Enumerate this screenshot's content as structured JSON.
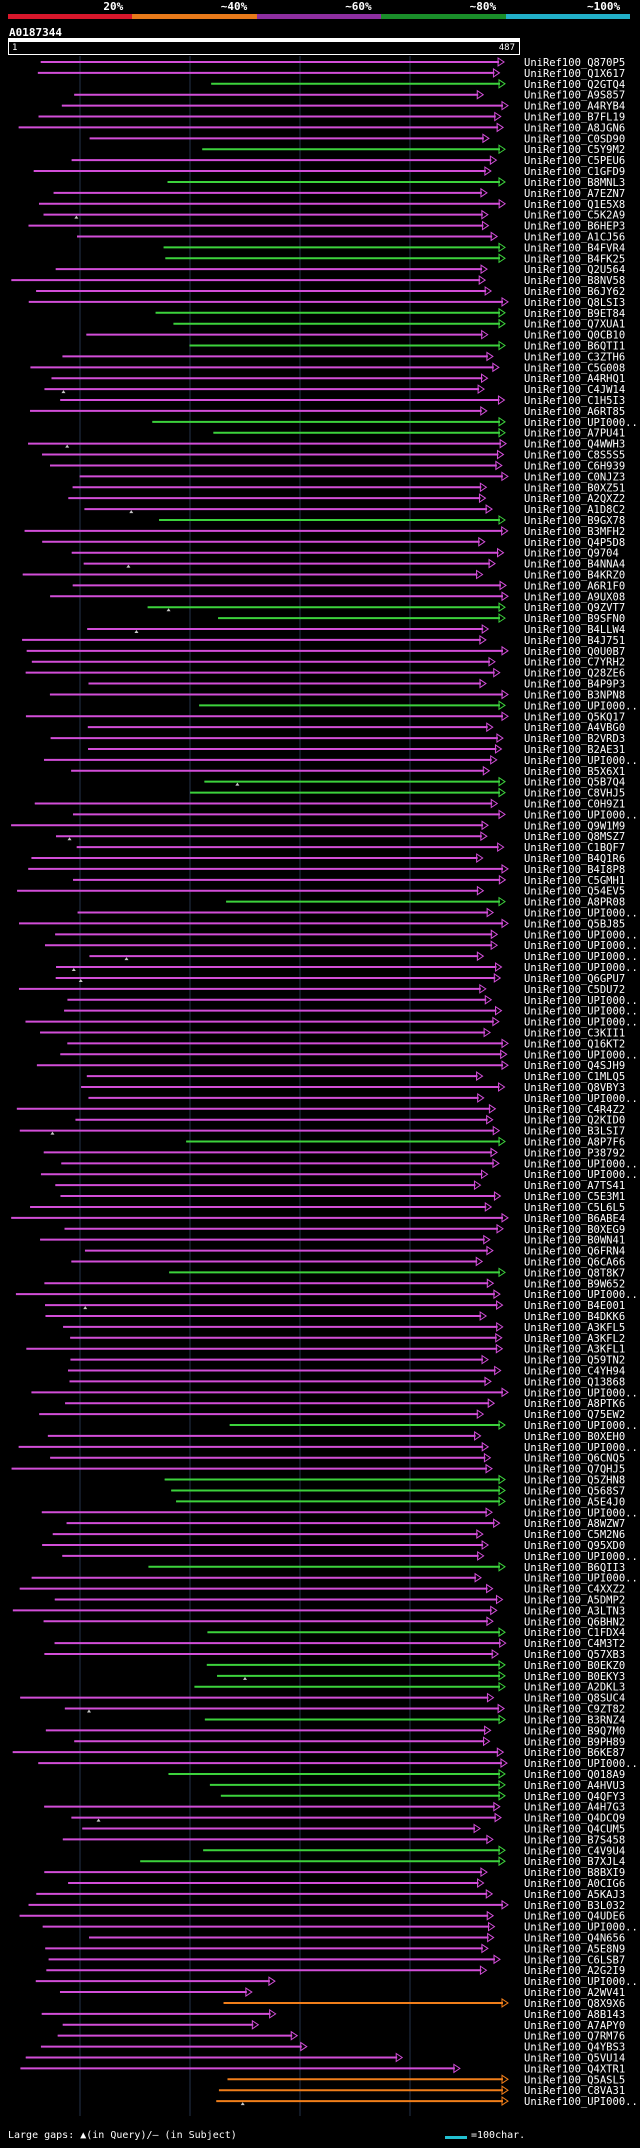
{
  "legend": {
    "bands": [
      {
        "label": "20%",
        "color": "#d8172b"
      },
      {
        "label": "~40%",
        "color": "#e87a1a"
      },
      {
        "label": "~60%",
        "color": "#8e2fa0"
      },
      {
        "label": "~80%",
        "color": "#1a8e2a"
      },
      {
        "label": "~100%",
        "color": "#22b0c8"
      }
    ]
  },
  "query": {
    "name": "A0187344",
    "start": "1",
    "end": "487"
  },
  "colors": {
    "magenta": "#d24ed8",
    "green": "#3cd23c",
    "orange": "#f07e1a",
    "grid": "#24324a",
    "gap": "#c8c8c8"
  },
  "hits": [
    {
      "name": "UniRef100_Q870P5",
      "color": "magenta"
    },
    {
      "name": "UniRef100_Q1X617",
      "color": "magenta"
    },
    {
      "name": "UniRef100_Q2GTQ4",
      "color": "green"
    },
    {
      "name": "UniRef100_A9S857",
      "color": "magenta"
    },
    {
      "name": "UniRef100_A4RYB4",
      "color": "magenta"
    },
    {
      "name": "UniRef100_B7FL19",
      "color": "magenta"
    },
    {
      "name": "UniRef100_A8JGN6",
      "color": "magenta"
    },
    {
      "name": "UniRef100_C0SD90",
      "color": "magenta"
    },
    {
      "name": "UniRef100_C5Y9M2",
      "color": "green"
    },
    {
      "name": "UniRef100_C5PEU6",
      "color": "magenta"
    },
    {
      "name": "UniRef100_C1GFD9",
      "color": "magenta"
    },
    {
      "name": "UniRef100_B8MNL3",
      "color": "green"
    },
    {
      "name": "UniRef100_A7EZN7",
      "color": "magenta"
    },
    {
      "name": "UniRef100_Q1E5X8",
      "color": "magenta"
    },
    {
      "name": "UniRef100_C5K2A9",
      "color": "magenta"
    },
    {
      "name": "UniRef100_B6HEP3",
      "color": "magenta"
    },
    {
      "name": "UniRef100_A1CJ56",
      "color": "magenta"
    },
    {
      "name": "UniRef100_B4FVR4",
      "color": "green"
    },
    {
      "name": "UniRef100_B4FK25",
      "color": "green"
    },
    {
      "name": "UniRef100_Q2U564",
      "color": "magenta"
    },
    {
      "name": "UniRef100_B8NV58",
      "color": "magenta"
    },
    {
      "name": "UniRef100_B6JY62",
      "color": "magenta"
    },
    {
      "name": "UniRef100_Q8LSI3",
      "color": "magenta"
    },
    {
      "name": "UniRef100_B9ET84",
      "color": "green"
    },
    {
      "name": "UniRef100_Q7XUA1",
      "color": "green"
    },
    {
      "name": "UniRef100_Q0CB10",
      "color": "magenta"
    },
    {
      "name": "UniRef100_B6QTI1",
      "color": "green"
    },
    {
      "name": "UniRef100_C3ZTH6",
      "color": "magenta"
    },
    {
      "name": "UniRef100_C5G008",
      "color": "magenta"
    },
    {
      "name": "UniRef100_A4RHQ1",
      "color": "magenta"
    },
    {
      "name": "UniRef100_C4JW14",
      "color": "magenta"
    },
    {
      "name": "UniRef100_C1H5I3",
      "color": "magenta"
    },
    {
      "name": "UniRef100_A6RT85",
      "color": "magenta"
    },
    {
      "name": "UniRef100_UPI000...",
      "color": "green"
    },
    {
      "name": "UniRef100_A7PU41",
      "color": "green"
    },
    {
      "name": "UniRef100_Q4WWH3",
      "color": "magenta"
    },
    {
      "name": "UniRef100_C8S5S5",
      "color": "magenta"
    },
    {
      "name": "UniRef100_C6H939",
      "color": "magenta"
    },
    {
      "name": "UniRef100_C0NJZ3",
      "color": "magenta"
    },
    {
      "name": "UniRef100_B0XZ51",
      "color": "magenta"
    },
    {
      "name": "UniRef100_A2QXZ2",
      "color": "magenta"
    },
    {
      "name": "UniRef100_A1D8C2",
      "color": "magenta"
    },
    {
      "name": "UniRef100_B9GX78",
      "color": "green"
    },
    {
      "name": "UniRef100_B3MFH2",
      "color": "magenta"
    },
    {
      "name": "UniRef100_Q4P5D8",
      "color": "magenta"
    },
    {
      "name": "UniRef100_Q9704",
      "color": "magenta"
    },
    {
      "name": "UniRef100_B4NNA4",
      "color": "magenta"
    },
    {
      "name": "UniRef100_B4KRZ0",
      "color": "magenta"
    },
    {
      "name": "UniRef100_A6R1F0",
      "color": "magenta"
    },
    {
      "name": "UniRef100_A9UX08",
      "color": "magenta"
    },
    {
      "name": "UniRef100_Q9ZVT7",
      "color": "green"
    },
    {
      "name": "UniRef100_B9SFN0",
      "color": "green"
    },
    {
      "name": "UniRef100_B4LLW4",
      "color": "magenta"
    },
    {
      "name": "UniRef100_B4J751",
      "color": "magenta"
    },
    {
      "name": "UniRef100_Q0U0B7",
      "color": "magenta"
    },
    {
      "name": "UniRef100_C7YRH2",
      "color": "magenta"
    },
    {
      "name": "UniRef100_Q28ZE6",
      "color": "magenta"
    },
    {
      "name": "UniRef100_B4P9P3",
      "color": "magenta"
    },
    {
      "name": "UniRef100_B3NPN8",
      "color": "magenta"
    },
    {
      "name": "UniRef100_UPI000...",
      "color": "green"
    },
    {
      "name": "UniRef100_Q5KQ17",
      "color": "magenta"
    },
    {
      "name": "UniRef100_A4VBG0",
      "color": "magenta"
    },
    {
      "name": "UniRef100_B2VRD3",
      "color": "magenta"
    },
    {
      "name": "UniRef100_B2AE31",
      "color": "magenta"
    },
    {
      "name": "UniRef100_UPI000...",
      "color": "magenta"
    },
    {
      "name": "UniRef100_B5X6X1",
      "color": "magenta"
    },
    {
      "name": "UniRef100_Q5B7Q4",
      "color": "green"
    },
    {
      "name": "UniRef100_C8VHJ5",
      "color": "green"
    },
    {
      "name": "UniRef100_C0H9Z1",
      "color": "magenta"
    },
    {
      "name": "UniRef100_UPI000...",
      "color": "magenta"
    },
    {
      "name": "UniRef100_Q9W1M9",
      "color": "magenta"
    },
    {
      "name": "UniRef100_Q8MSZ7",
      "color": "magenta"
    },
    {
      "name": "UniRef100_C1BQF7",
      "color": "magenta"
    },
    {
      "name": "UniRef100_B4Q1R6",
      "color": "magenta"
    },
    {
      "name": "UniRef100_B4I8P8",
      "color": "magenta"
    },
    {
      "name": "UniRef100_C5GMH1",
      "color": "magenta"
    },
    {
      "name": "UniRef100_Q54EV5",
      "color": "magenta"
    },
    {
      "name": "UniRef100_A8PR08",
      "color": "green"
    },
    {
      "name": "UniRef100_UPI000...",
      "color": "magenta"
    },
    {
      "name": "UniRef100_Q5BJ85",
      "color": "magenta"
    },
    {
      "name": "UniRef100_UPI000...",
      "color": "magenta"
    },
    {
      "name": "UniRef100_UPI000...",
      "color": "magenta"
    },
    {
      "name": "UniRef100_UPI000...",
      "color": "magenta"
    },
    {
      "name": "UniRef100_UPI000...",
      "color": "magenta"
    },
    {
      "name": "UniRef100_Q6GPU7",
      "color": "magenta"
    },
    {
      "name": "UniRef100_C5DU72",
      "color": "magenta"
    },
    {
      "name": "UniRef100_UPI000...",
      "color": "magenta"
    },
    {
      "name": "UniRef100_UPI000...",
      "color": "magenta"
    },
    {
      "name": "UniRef100_UPI000...",
      "color": "magenta"
    },
    {
      "name": "UniRef100_C3KII1",
      "color": "magenta"
    },
    {
      "name": "UniRef100_Q16KT2",
      "color": "magenta"
    },
    {
      "name": "UniRef100_UPI000...",
      "color": "magenta"
    },
    {
      "name": "UniRef100_Q4SJH9",
      "color": "magenta"
    },
    {
      "name": "UniRef100_C1MLQ5",
      "color": "magenta"
    },
    {
      "name": "UniRef100_Q8VBY3",
      "color": "magenta"
    },
    {
      "name": "UniRef100_UPI000...",
      "color": "magenta"
    },
    {
      "name": "UniRef100_C4R4Z2",
      "color": "magenta"
    },
    {
      "name": "UniRef100_Q2KID0",
      "color": "magenta"
    },
    {
      "name": "UniRef100_B3LSI7",
      "color": "magenta"
    },
    {
      "name": "UniRef100_A8P7F6",
      "color": "green"
    },
    {
      "name": "UniRef100_P38792",
      "color": "magenta"
    },
    {
      "name": "UniRef100_UPI000...",
      "color": "magenta"
    },
    {
      "name": "UniRef100_UPI000...",
      "color": "magenta"
    },
    {
      "name": "UniRef100_A7TS41",
      "color": "magenta"
    },
    {
      "name": "UniRef100_C5E3M1",
      "color": "magenta"
    },
    {
      "name": "UniRef100_C5L6L5",
      "color": "magenta"
    },
    {
      "name": "UniRef100_B6ABE4",
      "color": "magenta"
    },
    {
      "name": "UniRef100_B0XEG9",
      "color": "magenta"
    },
    {
      "name": "UniRef100_B0WN41",
      "color": "magenta"
    },
    {
      "name": "UniRef100_Q6FRN4",
      "color": "magenta"
    },
    {
      "name": "UniRef100_Q6CA66",
      "color": "magenta"
    },
    {
      "name": "UniRef100_Q8T8K7",
      "color": "green"
    },
    {
      "name": "UniRef100_B9W652",
      "color": "magenta"
    },
    {
      "name": "UniRef100_UPI000...",
      "color": "magenta"
    },
    {
      "name": "UniRef100_B4E001",
      "color": "magenta"
    },
    {
      "name": "UniRef100_B4DKK6",
      "color": "magenta"
    },
    {
      "name": "UniRef100_A3KFL5",
      "color": "magenta"
    },
    {
      "name": "UniRef100_A3KFL2",
      "color": "magenta"
    },
    {
      "name": "UniRef100_A3KFL1",
      "color": "magenta"
    },
    {
      "name": "UniRef100_Q59TN2",
      "color": "magenta"
    },
    {
      "name": "UniRef100_C4YH94",
      "color": "magenta"
    },
    {
      "name": "UniRef100_Q13868",
      "color": "magenta"
    },
    {
      "name": "UniRef100_UPI000...",
      "color": "magenta"
    },
    {
      "name": "UniRef100_A8PTK6",
      "color": "magenta"
    },
    {
      "name": "UniRef100_Q75EW2",
      "color": "magenta"
    },
    {
      "name": "UniRef100_UPI000...",
      "color": "green"
    },
    {
      "name": "UniRef100_B0XEH0",
      "color": "magenta"
    },
    {
      "name": "UniRef100_UPI000...",
      "color": "magenta"
    },
    {
      "name": "UniRef100_Q6CNQ5",
      "color": "magenta"
    },
    {
      "name": "UniRef100_Q7QHJ5",
      "color": "magenta"
    },
    {
      "name": "UniRef100_Q5ZHN8",
      "color": "green"
    },
    {
      "name": "UniRef100_Q568S7",
      "color": "green"
    },
    {
      "name": "UniRef100_A5E4J0",
      "color": "green"
    },
    {
      "name": "UniRef100_UPI000...",
      "color": "magenta"
    },
    {
      "name": "UniRef100_A8WZW7",
      "color": "magenta"
    },
    {
      "name": "UniRef100_C5M2N6",
      "color": "magenta"
    },
    {
      "name": "UniRef100_Q95XD0",
      "color": "magenta"
    },
    {
      "name": "UniRef100_UPI000...",
      "color": "magenta"
    },
    {
      "name": "UniRef100_B6QII3",
      "color": "green"
    },
    {
      "name": "UniRef100_UPI000...",
      "color": "magenta"
    },
    {
      "name": "UniRef100_C4XXZ2",
      "color": "magenta"
    },
    {
      "name": "UniRef100_A5DMP2",
      "color": "magenta"
    },
    {
      "name": "UniRef100_A3LTN3",
      "color": "magenta"
    },
    {
      "name": "UniRef100_Q6BHN2",
      "color": "magenta"
    },
    {
      "name": "UniRef100_C1FDX4",
      "color": "green"
    },
    {
      "name": "UniRef100_C4M3T2",
      "color": "magenta"
    },
    {
      "name": "UniRef100_Q57XB3",
      "color": "magenta"
    },
    {
      "name": "UniRef100_B0EKZ0",
      "color": "green"
    },
    {
      "name": "UniRef100_B0EKY3",
      "color": "green"
    },
    {
      "name": "UniRef100_A2DKL3",
      "color": "green"
    },
    {
      "name": "UniRef100_Q8SUC4",
      "color": "magenta"
    },
    {
      "name": "UniRef100_C9ZT82",
      "color": "magenta"
    },
    {
      "name": "UniRef100_B3RNZ4",
      "color": "green"
    },
    {
      "name": "UniRef100_B9Q7M0",
      "color": "magenta"
    },
    {
      "name": "UniRef100_B9PH89",
      "color": "magenta"
    },
    {
      "name": "UniRef100_B6KE87",
      "color": "magenta"
    },
    {
      "name": "UniRef100_UPI000...",
      "color": "magenta"
    },
    {
      "name": "UniRef100_Q018A9",
      "color": "green"
    },
    {
      "name": "UniRef100_A4HVU3",
      "color": "green"
    },
    {
      "name": "UniRef100_Q4QFY3",
      "color": "green"
    },
    {
      "name": "UniRef100_A4H7G3",
      "color": "magenta"
    },
    {
      "name": "UniRef100_Q4DCQ9",
      "color": "magenta"
    },
    {
      "name": "UniRef100_Q4CUM5",
      "color": "magenta"
    },
    {
      "name": "UniRef100_B7S458",
      "color": "magenta"
    },
    {
      "name": "UniRef100_C4V9U4",
      "color": "green"
    },
    {
      "name": "UniRef100_B7XJL4",
      "color": "green"
    },
    {
      "name": "UniRef100_B8BXI9",
      "color": "magenta"
    },
    {
      "name": "UniRef100_A0CIG6",
      "color": "magenta"
    },
    {
      "name": "UniRef100_A5KAJ3",
      "color": "magenta"
    },
    {
      "name": "UniRef100_B3L032",
      "color": "magenta"
    },
    {
      "name": "UniRef100_Q4UDE6",
      "color": "magenta"
    },
    {
      "name": "UniRef100_UPI000...",
      "color": "magenta"
    },
    {
      "name": "UniRef100_Q4N656",
      "color": "magenta"
    },
    {
      "name": "UniRef100_A5E8N9",
      "color": "magenta"
    },
    {
      "name": "UniRef100_C6LSB7",
      "color": "magenta"
    },
    {
      "name": "UniRef100_A2G2I9",
      "color": "magenta"
    },
    {
      "name": "UniRef100_UPI000...",
      "color": "magenta"
    },
    {
      "name": "UniRef100_A2WV41",
      "color": "magenta"
    },
    {
      "name": "UniRef100_Q8X9X6",
      "color": "orange"
    },
    {
      "name": "UniRef100_A8B143",
      "color": "magenta"
    },
    {
      "name": "UniRef100_A7APY0",
      "color": "magenta"
    },
    {
      "name": "UniRef100_Q7RM76",
      "color": "magenta"
    },
    {
      "name": "UniRef100_Q4YBS3",
      "color": "magenta"
    },
    {
      "name": "UniRef100_Q5VU14",
      "color": "magenta"
    },
    {
      "name": "UniRef100_Q4XTR1",
      "color": "magenta"
    },
    {
      "name": "UniRef100_Q5ASL5",
      "color": "orange"
    },
    {
      "name": "UniRef100_C8VA31",
      "color": "orange"
    },
    {
      "name": "UniRef100_UPI000...",
      "color": "orange"
    }
  ],
  "footer": {
    "text": "Large gaps: ▲(in Query)/‒ (in Subject)",
    "scale": "=100char."
  }
}
